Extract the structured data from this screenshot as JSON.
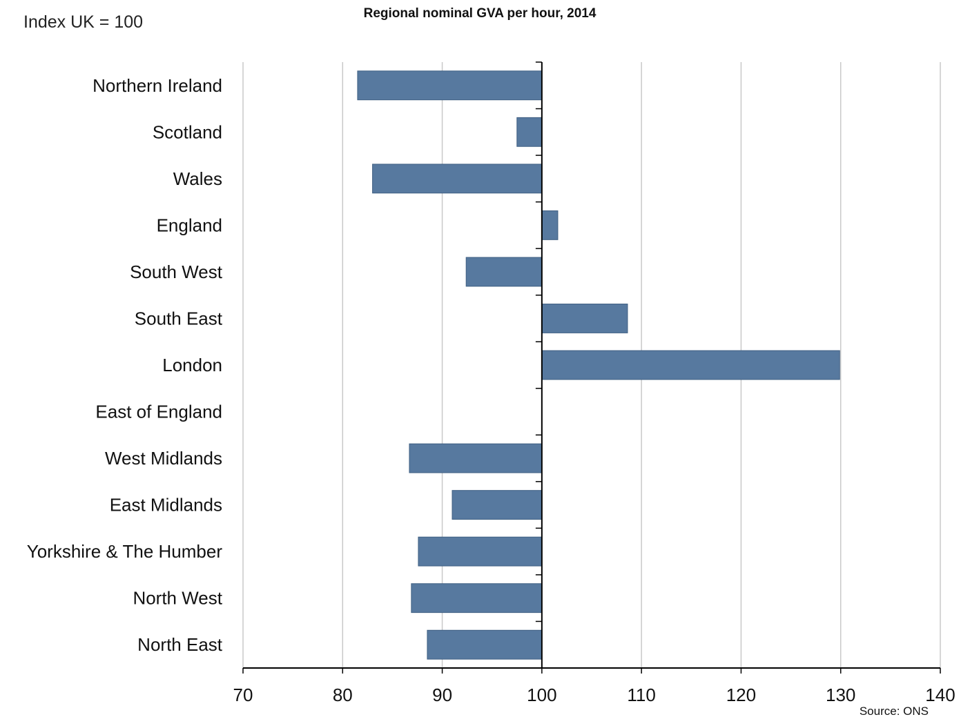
{
  "chart_data": {
    "type": "bar",
    "orientation": "horizontal",
    "title": "Regional nominal GVA per hour, 2014",
    "index_note": "Index UK = 100",
    "source": "Source: ONS",
    "baseline": 100,
    "categories": [
      "Northern Ireland",
      "Scotland",
      "Wales",
      "England",
      "South West",
      "South East",
      "London",
      "East of England",
      "West Midlands",
      "East Midlands",
      "Yorkshire & The Humber",
      "North West",
      "North East"
    ],
    "values": [
      81.5,
      97.5,
      83.0,
      101.6,
      92.4,
      108.6,
      129.9,
      100.0,
      86.7,
      91.0,
      87.6,
      86.9,
      88.5
    ],
    "xlim": [
      70,
      140
    ],
    "xticks": [
      "70",
      "80",
      "90",
      "100",
      "110",
      "120",
      "130",
      "140"
    ],
    "grid": true,
    "colors": {
      "bar": "#57799f",
      "bar_edge": "#3f5f82",
      "grid": "#c8c8c8"
    }
  }
}
